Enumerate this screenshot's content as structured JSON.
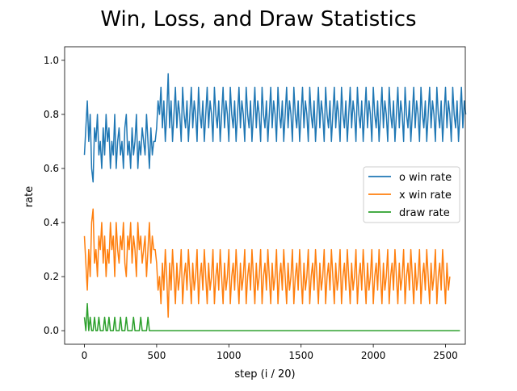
{
  "chart_data": {
    "type": "line",
    "title": "Win, Loss, and Draw Statistics",
    "xlabel": "step (i / 20)",
    "ylabel": "rate",
    "xlim": [
      -137,
      2637
    ],
    "ylim": [
      -0.05,
      1.05
    ],
    "xticks": [
      0,
      500,
      1000,
      1500,
      2000,
      2500
    ],
    "xtick_labels": [
      "0",
      "500",
      "1000",
      "1500",
      "2000",
      "2500"
    ],
    "yticks": [
      0.0,
      0.2,
      0.4,
      0.6,
      0.8,
      1.0
    ],
    "ytick_labels": [
      "0.0",
      "0.2",
      "0.4",
      "0.6",
      "0.8",
      "1.0"
    ],
    "grid": false,
    "legend_position": "center-right",
    "x_step": 10,
    "series": [
      {
        "name": "o win rate",
        "color": "#1f77b4",
        "values": [
          0.65,
          0.75,
          0.85,
          0.7,
          0.8,
          0.6,
          0.55,
          0.75,
          0.7,
          0.8,
          0.65,
          0.7,
          0.6,
          0.75,
          0.65,
          0.8,
          0.7,
          0.75,
          0.6,
          0.7,
          0.65,
          0.8,
          0.6,
          0.7,
          0.75,
          0.65,
          0.7,
          0.6,
          0.75,
          0.8,
          0.65,
          0.7,
          0.6,
          0.75,
          0.65,
          0.7,
          0.8,
          0.6,
          0.7,
          0.65,
          0.75,
          0.7,
          0.65,
          0.8,
          0.7,
          0.6,
          0.75,
          0.65,
          0.7,
          0.7,
          0.75,
          0.85,
          0.8,
          0.9,
          0.75,
          0.85,
          0.7,
          0.8,
          0.95,
          0.75,
          0.85,
          0.7,
          0.8,
          0.9,
          0.75,
          0.85,
          0.8,
          0.7,
          0.9,
          0.8,
          0.75,
          0.85,
          0.7,
          0.8,
          0.9,
          0.75,
          0.85,
          0.8,
          0.7,
          0.9,
          0.8,
          0.75,
          0.85,
          0.7,
          0.8,
          0.9,
          0.75,
          0.85,
          0.8,
          0.7,
          0.9,
          0.8,
          0.75,
          0.85,
          0.7,
          0.8,
          0.9,
          0.75,
          0.85,
          0.8,
          0.7,
          0.9,
          0.8,
          0.75,
          0.85,
          0.7,
          0.8,
          0.9,
          0.75,
          0.85,
          0.8,
          0.7,
          0.9,
          0.8,
          0.75,
          0.85,
          0.7,
          0.8,
          0.9,
          0.75,
          0.85,
          0.8,
          0.7,
          0.9,
          0.8,
          0.75,
          0.85,
          0.7,
          0.8,
          0.9,
          0.75,
          0.85,
          0.8,
          0.7,
          0.9,
          0.8,
          0.75,
          0.85,
          0.7,
          0.8,
          0.9,
          0.75,
          0.85,
          0.8,
          0.7,
          0.9,
          0.8,
          0.75,
          0.85,
          0.7,
          0.8,
          0.9,
          0.75,
          0.85,
          0.8,
          0.7,
          0.9,
          0.8,
          0.75,
          0.85,
          0.7,
          0.8,
          0.9,
          0.75,
          0.85,
          0.8,
          0.7,
          0.9,
          0.8,
          0.75,
          0.85,
          0.7,
          0.8,
          0.9,
          0.75,
          0.85,
          0.8,
          0.7,
          0.9,
          0.8,
          0.75,
          0.85,
          0.7,
          0.8,
          0.9,
          0.75,
          0.85,
          0.8,
          0.7,
          0.9,
          0.8,
          0.75,
          0.85,
          0.7,
          0.8,
          0.9,
          0.75,
          0.85,
          0.8,
          0.7,
          0.9,
          0.8,
          0.75,
          0.85,
          0.7,
          0.8,
          0.9,
          0.75,
          0.85,
          0.8,
          0.7,
          0.9,
          0.8,
          0.75,
          0.85,
          0.7,
          0.8,
          0.9,
          0.75,
          0.85,
          0.8,
          0.7,
          0.9,
          0.8,
          0.75,
          0.85,
          0.7,
          0.8,
          0.9,
          0.75,
          0.85,
          0.8,
          0.7,
          0.9,
          0.8,
          0.75,
          0.85,
          0.7,
          0.8,
          0.9,
          0.75,
          0.85,
          0.8,
          0.7,
          0.9,
          0.8,
          0.75,
          0.85,
          0.7,
          0.8,
          0.9,
          0.75,
          0.85,
          0.8,
          0.7,
          0.9,
          0.8,
          0.75,
          0.85,
          0.7,
          0.8,
          0.9,
          0.75,
          0.85,
          0.8
        ]
      },
      {
        "name": "x win rate",
        "color": "#ff7f0e",
        "values": [
          0.35,
          0.25,
          0.15,
          0.3,
          0.2,
          0.4,
          0.45,
          0.25,
          0.3,
          0.2,
          0.35,
          0.3,
          0.4,
          0.25,
          0.35,
          0.2,
          0.3,
          0.25,
          0.4,
          0.3,
          0.35,
          0.2,
          0.4,
          0.3,
          0.25,
          0.35,
          0.3,
          0.4,
          0.25,
          0.2,
          0.35,
          0.3,
          0.4,
          0.25,
          0.35,
          0.3,
          0.2,
          0.4,
          0.3,
          0.35,
          0.25,
          0.3,
          0.35,
          0.2,
          0.3,
          0.4,
          0.25,
          0.35,
          0.3,
          0.3,
          0.25,
          0.15,
          0.2,
          0.1,
          0.25,
          0.15,
          0.3,
          0.2,
          0.05,
          0.25,
          0.15,
          0.3,
          0.2,
          0.1,
          0.25,
          0.15,
          0.2,
          0.3,
          0.1,
          0.2,
          0.25,
          0.15,
          0.3,
          0.2,
          0.1,
          0.25,
          0.15,
          0.2,
          0.3,
          0.1,
          0.2,
          0.25,
          0.15,
          0.3,
          0.2,
          0.1,
          0.25,
          0.15,
          0.2,
          0.3,
          0.1,
          0.2,
          0.25,
          0.15,
          0.3,
          0.2,
          0.1,
          0.25,
          0.15,
          0.2,
          0.3,
          0.1,
          0.2,
          0.25,
          0.15,
          0.3,
          0.2,
          0.1,
          0.25,
          0.15,
          0.2,
          0.3,
          0.1,
          0.2,
          0.25,
          0.15,
          0.3,
          0.2,
          0.1,
          0.25,
          0.15,
          0.2,
          0.3,
          0.1,
          0.2,
          0.25,
          0.15,
          0.3,
          0.2,
          0.1,
          0.25,
          0.15,
          0.2,
          0.3,
          0.1,
          0.2,
          0.25,
          0.15,
          0.3,
          0.2,
          0.1,
          0.25,
          0.15,
          0.2,
          0.3,
          0.1,
          0.2,
          0.25,
          0.15,
          0.3,
          0.2,
          0.1,
          0.25,
          0.15,
          0.2,
          0.3,
          0.1,
          0.2,
          0.25,
          0.15,
          0.3,
          0.2,
          0.1,
          0.25,
          0.15,
          0.2,
          0.3,
          0.1,
          0.2,
          0.25,
          0.15,
          0.3,
          0.2,
          0.1,
          0.25,
          0.15,
          0.2,
          0.3,
          0.1,
          0.2,
          0.25,
          0.15,
          0.3,
          0.2,
          0.1,
          0.25,
          0.15,
          0.2,
          0.3,
          0.1,
          0.2,
          0.25,
          0.15,
          0.3,
          0.2,
          0.1,
          0.25,
          0.15,
          0.2,
          0.3,
          0.1,
          0.2,
          0.25,
          0.15,
          0.3,
          0.2,
          0.1,
          0.25,
          0.15,
          0.2,
          0.3,
          0.1,
          0.2,
          0.25,
          0.15,
          0.3,
          0.2,
          0.1,
          0.25,
          0.15,
          0.2,
          0.3,
          0.1,
          0.2,
          0.25,
          0.15,
          0.3,
          0.2,
          0.1,
          0.25,
          0.15,
          0.2,
          0.3,
          0.1,
          0.2,
          0.25,
          0.15,
          0.3,
          0.2,
          0.1,
          0.25,
          0.15,
          0.2,
          0.3,
          0.1,
          0.2,
          0.25,
          0.15,
          0.3,
          0.2,
          0.1,
          0.25,
          0.15,
          0.2
        ]
      },
      {
        "name": "draw rate",
        "color": "#2ca02c",
        "values": [
          0.05,
          0,
          0.1,
          0,
          0.05,
          0,
          0,
          0.05,
          0,
          0,
          0.05,
          0,
          0,
          0,
          0.05,
          0,
          0,
          0.05,
          0,
          0,
          0,
          0.05,
          0,
          0,
          0,
          0.05,
          0,
          0,
          0,
          0.05,
          0,
          0,
          0,
          0,
          0.05,
          0,
          0,
          0,
          0,
          0.05,
          0,
          0,
          0,
          0,
          0.05,
          0,
          0,
          0,
          0,
          0,
          0,
          0,
          0,
          0,
          0,
          0,
          0,
          0,
          0,
          0,
          0,
          0,
          0,
          0,
          0,
          0,
          0,
          0,
          0,
          0,
          0,
          0,
          0,
          0,
          0,
          0,
          0,
          0,
          0,
          0,
          0,
          0,
          0,
          0,
          0,
          0,
          0,
          0,
          0,
          0,
          0,
          0,
          0,
          0,
          0,
          0,
          0,
          0,
          0,
          0,
          0,
          0,
          0,
          0,
          0,
          0,
          0,
          0,
          0,
          0,
          0,
          0,
          0,
          0,
          0,
          0,
          0,
          0,
          0,
          0,
          0,
          0,
          0,
          0,
          0,
          0,
          0,
          0,
          0,
          0,
          0,
          0,
          0,
          0,
          0,
          0,
          0,
          0,
          0,
          0,
          0,
          0,
          0,
          0,
          0,
          0,
          0,
          0,
          0,
          0,
          0,
          0,
          0,
          0,
          0,
          0,
          0,
          0,
          0,
          0,
          0,
          0,
          0,
          0,
          0,
          0,
          0,
          0,
          0,
          0,
          0,
          0,
          0,
          0,
          0,
          0,
          0,
          0,
          0,
          0,
          0,
          0,
          0,
          0,
          0,
          0,
          0,
          0,
          0,
          0,
          0,
          0,
          0,
          0,
          0,
          0,
          0,
          0,
          0,
          0,
          0,
          0,
          0,
          0,
          0,
          0,
          0,
          0,
          0,
          0,
          0,
          0,
          0,
          0,
          0,
          0,
          0,
          0,
          0,
          0,
          0,
          0,
          0,
          0,
          0,
          0,
          0,
          0,
          0,
          0,
          0,
          0,
          0,
          0,
          0,
          0,
          0,
          0,
          0,
          0,
          0,
          0,
          0,
          0,
          0,
          0,
          0,
          0,
          0,
          0,
          0,
          0,
          0,
          0,
          0,
          0,
          0,
          0,
          0,
          0,
          0
        ]
      }
    ]
  }
}
